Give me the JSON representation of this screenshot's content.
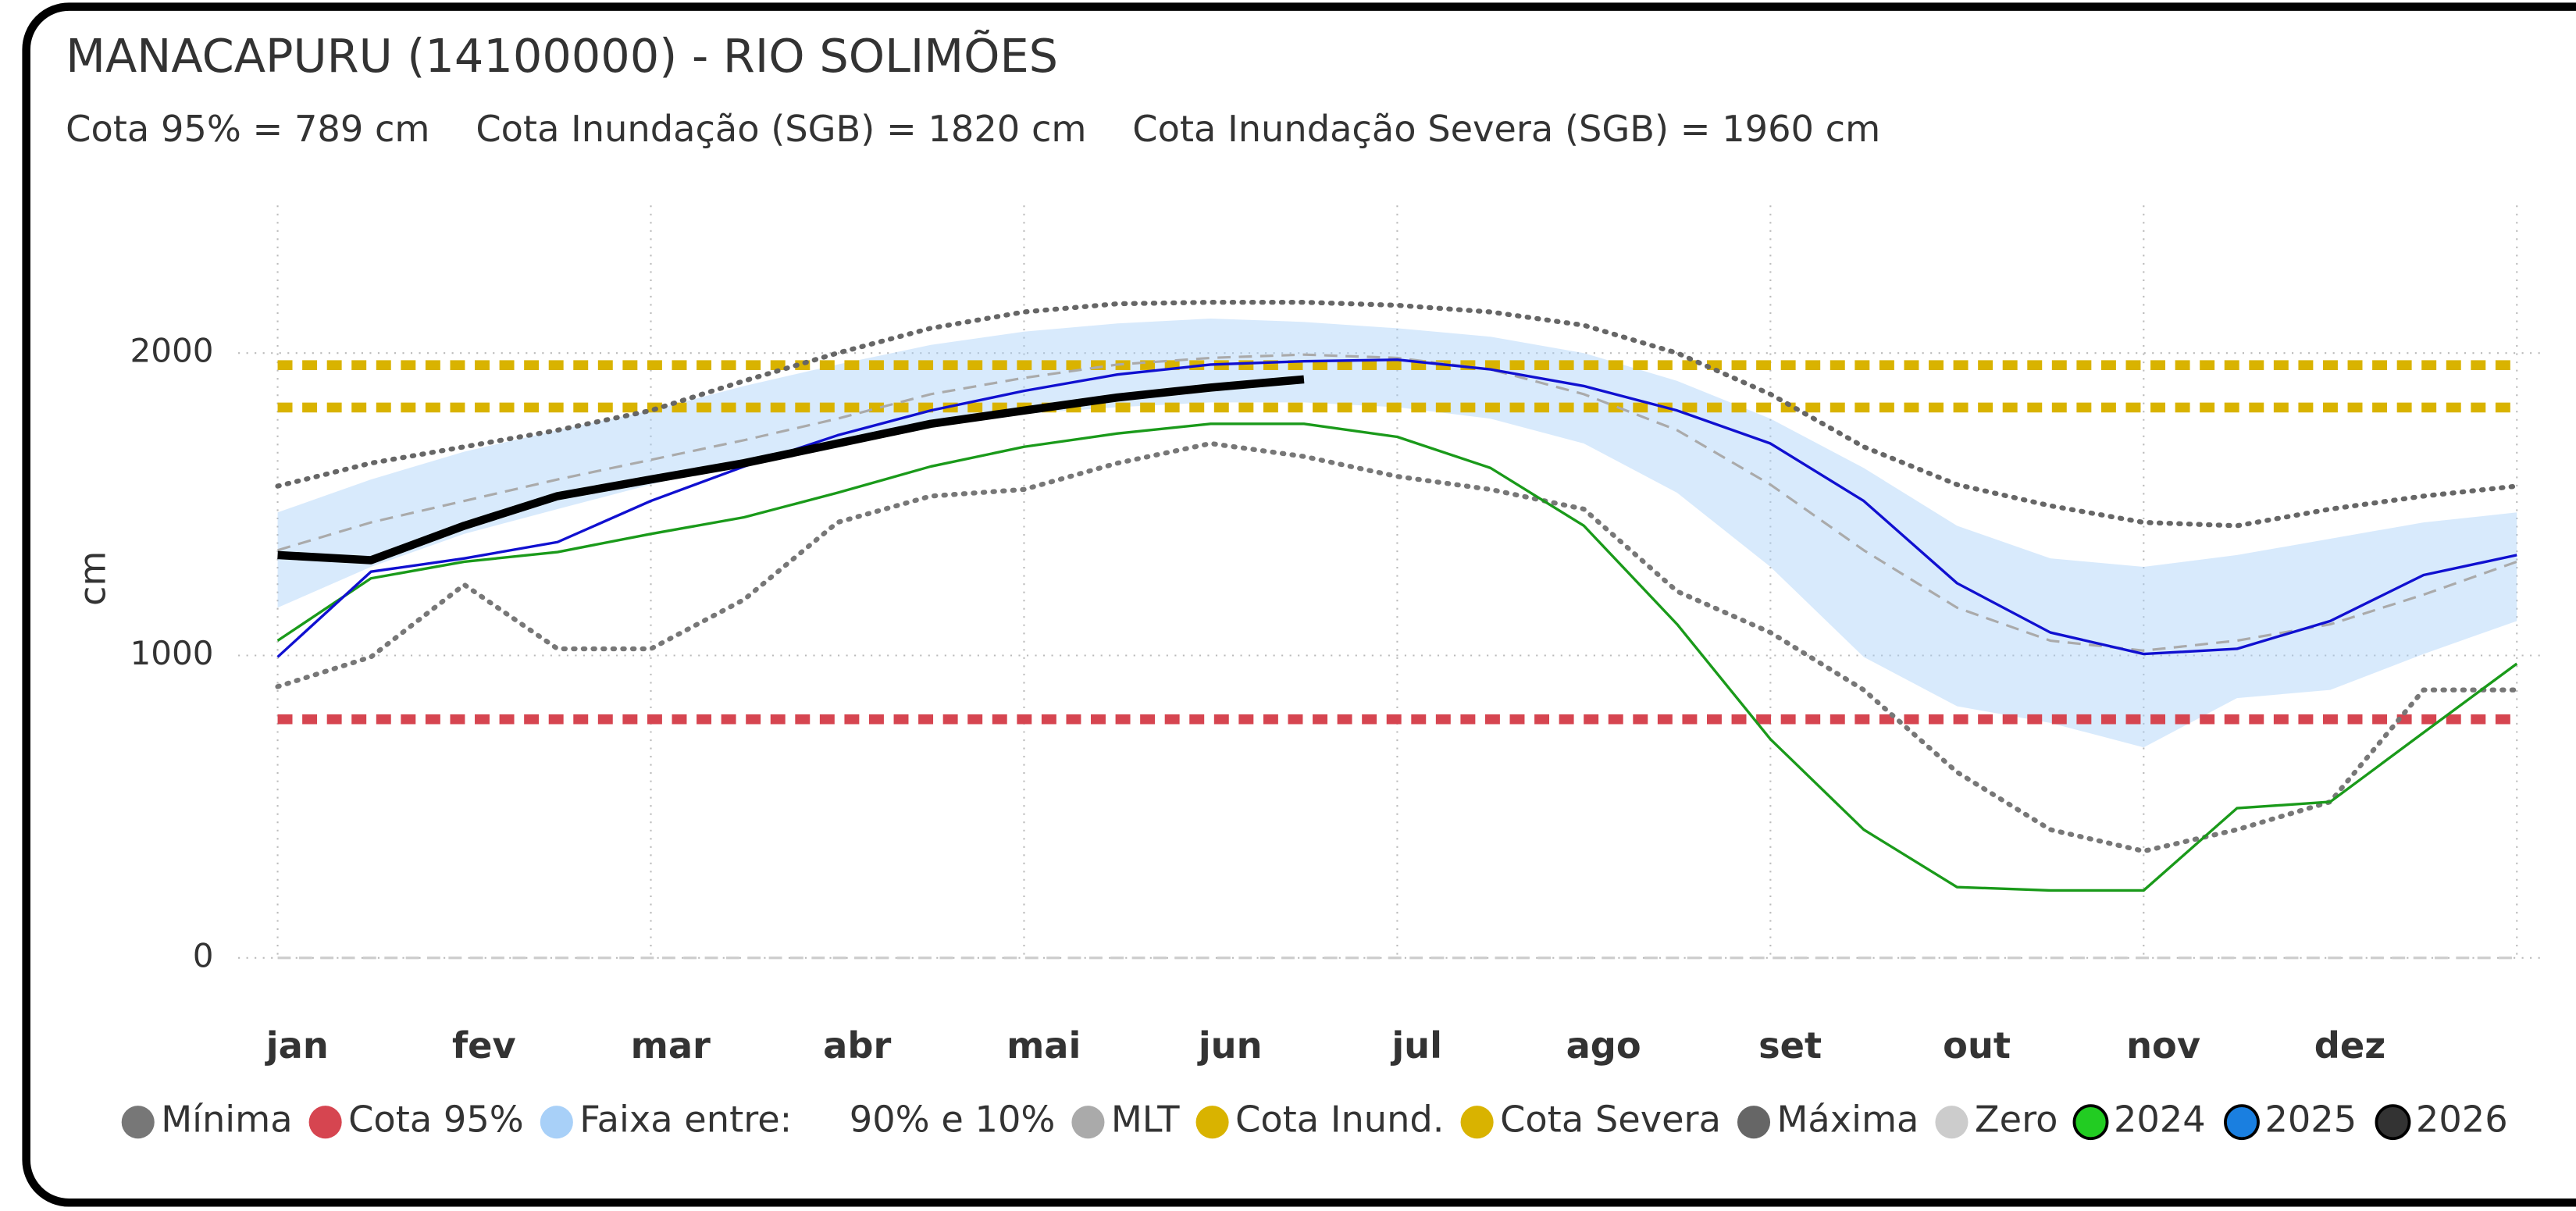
{
  "chart_data": {
    "type": "line",
    "title": "MANACAPURU (14100000) - RIO SOLIMÕES",
    "subtitle": "Cota 95% = 789 cm    Cota Inundação (SGB) = 1820 cm    Cota Inundação Severa (SGB) = 1960 cm",
    "y_label": "cm",
    "categories": [
      "jan",
      null,
      "fev",
      null,
      "mar",
      null,
      "abr",
      null,
      "mai",
      null,
      "jun",
      null,
      "jul",
      null,
      "ago",
      null,
      "set",
      null,
      "out",
      null,
      "nov",
      null,
      "dez",
      null,
      null
    ],
    "ylim": [
      0,
      2450
    ],
    "yticks": [
      0,
      1000,
      2000
    ],
    "grid": true,
    "series": [
      {
        "name": "Mínima",
        "color": "#777777",
        "style": "dotted",
        "values": [
          897,
          995,
          1234,
          1022,
          1022,
          1185,
          1440,
          1527,
          1549,
          1636,
          1701,
          1658,
          1592,
          1549,
          1484,
          1212,
          1076,
          886,
          614,
          424,
          353,
          424,
          516,
          886,
          886
        ]
      },
      {
        "name": "Cota 95%",
        "color": "#d64550",
        "style": "thick-dash",
        "value": 789
      },
      {
        "name": "Faixa entre:     90% e 10%",
        "color": "#a8d0f8",
        "style": "band",
        "upper": [
          1473,
          1582,
          1674,
          1745,
          1810,
          1891,
          1962,
          2027,
          2071,
          2098,
          2114,
          2103,
          2082,
          2054,
          2000,
          1908,
          1783,
          1620,
          1429,
          1321,
          1293,
          1332,
          1386,
          1440,
          1473
        ],
        "lower": [
          1158,
          1293,
          1402,
          1484,
          1565,
          1647,
          1712,
          1766,
          1799,
          1821,
          1837,
          1837,
          1821,
          1783,
          1701,
          1538,
          1293,
          995,
          832,
          777,
          696,
          859,
          886,
          1005,
          1114
        ]
      },
      {
        "name": "MLT",
        "color": "#aaaaaa",
        "style": "dashed",
        "values": [
          1348,
          1440,
          1511,
          1582,
          1647,
          1712,
          1783,
          1864,
          1918,
          1962,
          1984,
          1995,
          1984,
          1946,
          1864,
          1745,
          1565,
          1348,
          1158,
          1049,
          1016,
          1049,
          1103,
          1201,
          1310
        ]
      },
      {
        "name": "Cota Inund.",
        "color": "#d9b300",
        "style": "thick-dash",
        "value": 1820
      },
      {
        "name": "Cota Severa",
        "color": "#d9b300",
        "style": "thick-dash",
        "value": 1960
      },
      {
        "name": "Máxima",
        "color": "#666666",
        "style": "dotted",
        "values": [
          1560,
          1636,
          1690,
          1745,
          1810,
          1908,
          2000,
          2082,
          2136,
          2163,
          2168,
          2168,
          2158,
          2136,
          2092,
          2000,
          1864,
          1690,
          1565,
          1495,
          1440,
          1429,
          1484,
          1527,
          1560
        ]
      },
      {
        "name": "Zero",
        "color": "#cccccc",
        "style": "dashed",
        "value": 0
      },
      {
        "name": "2024",
        "color": "#1a9a1a",
        "legend_color": "#22cc22",
        "style": "solid",
        "values": [
          1049,
          1255,
          1310,
          1342,
          1402,
          1457,
          1538,
          1625,
          1690,
          1734,
          1766,
          1766,
          1723,
          1620,
          1429,
          1103,
          723,
          424,
          234,
          223,
          223,
          495,
          516,
          745,
          973
        ]
      },
      {
        "name": "2025",
        "color": "#1010d0",
        "legend_color": "#1a7fe0",
        "style": "solid",
        "values": [
          995,
          1277,
          1321,
          1375,
          1511,
          1625,
          1728,
          1810,
          1875,
          1929,
          1962,
          1973,
          1978,
          1946,
          1891,
          1810,
          1701,
          1511,
          1239,
          1076,
          1005,
          1022,
          1114,
          1266,
          1332
        ]
      },
      {
        "name": "2026",
        "color": "#000000",
        "legend_color": "#333333",
        "style": "bold",
        "values": [
          1332,
          1315,
          1429,
          1527,
          1582,
          1636,
          1701,
          1766,
          1810,
          1853,
          1886,
          1913,
          null,
          null,
          null,
          null,
          null,
          null,
          null,
          null,
          null,
          null,
          null,
          null,
          null
        ]
      }
    ]
  }
}
